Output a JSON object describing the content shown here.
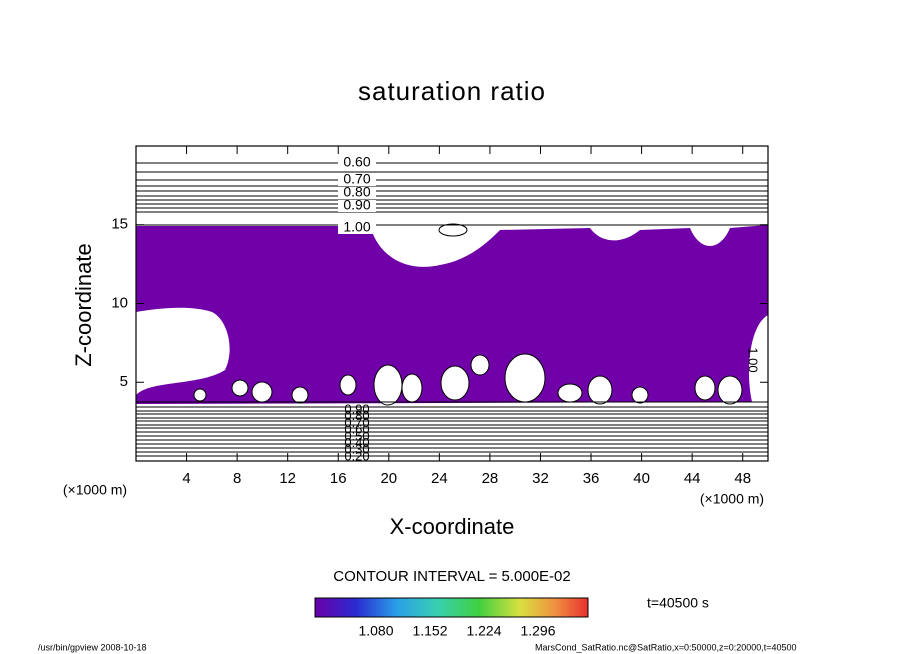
{
  "chart_data": {
    "type": "contour",
    "title": "saturation ratio",
    "xlabel": "X-coordinate",
    "ylabel": "Z-coordinate",
    "x_unit": "(×1000 m)",
    "y_unit": "(×1000 m)",
    "xlim": [
      0,
      50
    ],
    "xticks": [
      4,
      8,
      12,
      16,
      20,
      24,
      28,
      32,
      36,
      40,
      44,
      48
    ],
    "ylim": [
      0,
      20
    ],
    "yticks": [
      5,
      10,
      15
    ],
    "upper_contour_labels": [
      "0.60",
      "0.70",
      "0.80",
      "0.90",
      "1.00"
    ],
    "lower_contour_labels": [
      "0.90",
      "0.80",
      "0.70",
      "0.60",
      "0.50",
      "0.40",
      "0.30",
      "0.20"
    ],
    "side_contour_label": "1.00",
    "contour_interval": "CONTOUR INTERVAL = 5.000E-02",
    "colorbar_labels": [
      "1.080",
      "1.152",
      "1.224",
      "1.296"
    ],
    "time": "t=40500 s",
    "footer_left": "/usr/bin/gpview   2008-10-18",
    "footer_right": "MarsCond_SatRatio.nc@SatRatio,x=0:50000,z=0:20000,t=40500"
  }
}
